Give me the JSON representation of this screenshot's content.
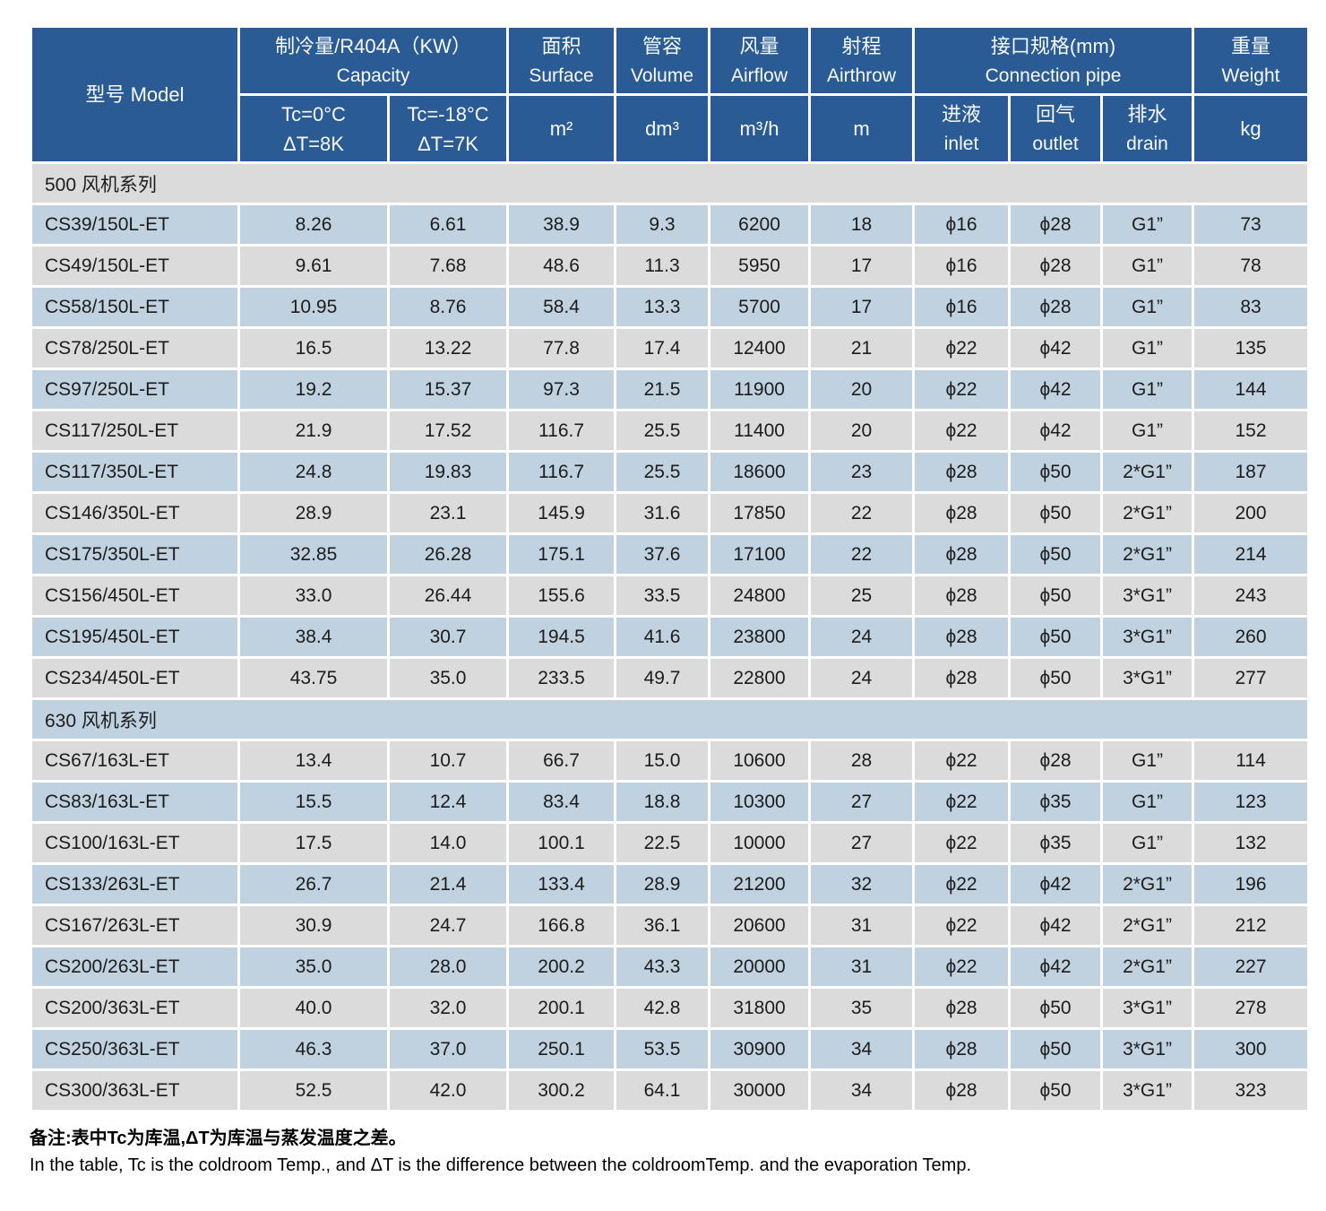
{
  "colors": {
    "header_bg": "#2a5b94",
    "header_text": "#f7fafc",
    "row_blue": "#c0d2e0",
    "row_gray": "#dbdbdb",
    "text_dark": "#1c1c1c"
  },
  "table": {
    "header": {
      "model": "型号 Model",
      "capacity_group_cn": "制冷量/R404A（KW）",
      "capacity_group_en": "Capacity",
      "tc0_line1": "Tc=0°C",
      "tc0_line2": "ΔT=8K",
      "tc18_line1": "Tc=-18°C",
      "tc18_line2": "ΔT=7K",
      "surface_cn": "面积",
      "surface_en": "Surface",
      "surface_unit": "m²",
      "volume_cn": "管容",
      "volume_en": "Volume",
      "volume_unit": "dm³",
      "airflow_cn": "风量",
      "airflow_en": "Airflow",
      "airflow_unit": "m³/h",
      "airthrow_cn": "射程",
      "airthrow_en": "Airthrow",
      "airthrow_unit": "m",
      "pipe_group_cn": "接口规格(mm)",
      "pipe_group_en": "Connection pipe",
      "inlet_cn": "进液",
      "inlet_en": "inlet",
      "outlet_cn": "回气",
      "outlet_en": "outlet",
      "drain_cn": "排水",
      "drain_en": "drain",
      "weight_cn": "重量",
      "weight_en": "Weight",
      "weight_unit": "kg"
    },
    "sections": [
      {
        "label": "500 风机系列",
        "rows": [
          [
            "CS39/150L-ET",
            "8.26",
            "6.61",
            "38.9",
            "9.3",
            "6200",
            "18",
            "ϕ16",
            "ϕ28",
            "G1”",
            "73"
          ],
          [
            "CS49/150L-ET",
            "9.61",
            "7.68",
            "48.6",
            "11.3",
            "5950",
            "17",
            "ϕ16",
            "ϕ28",
            "G1”",
            "78"
          ],
          [
            "CS58/150L-ET",
            "10.95",
            "8.76",
            "58.4",
            "13.3",
            "5700",
            "17",
            "ϕ16",
            "ϕ28",
            "G1”",
            "83"
          ],
          [
            "CS78/250L-ET",
            "16.5",
            "13.22",
            "77.8",
            "17.4",
            "12400",
            "21",
            "ϕ22",
            "ϕ42",
            "G1”",
            "135"
          ],
          [
            "CS97/250L-ET",
            "19.2",
            "15.37",
            "97.3",
            "21.5",
            "11900",
            "20",
            "ϕ22",
            "ϕ42",
            "G1”",
            "144"
          ],
          [
            "CS117/250L-ET",
            "21.9",
            "17.52",
            "116.7",
            "25.5",
            "11400",
            "20",
            "ϕ22",
            "ϕ42",
            "G1”",
            "152"
          ],
          [
            "CS117/350L-ET",
            "24.8",
            "19.83",
            "116.7",
            "25.5",
            "18600",
            "23",
            "ϕ28",
            "ϕ50",
            "2*G1”",
            "187"
          ],
          [
            "CS146/350L-ET",
            "28.9",
            "23.1",
            "145.9",
            "31.6",
            "17850",
            "22",
            "ϕ28",
            "ϕ50",
            "2*G1”",
            "200"
          ],
          [
            "CS175/350L-ET",
            "32.85",
            "26.28",
            "175.1",
            "37.6",
            "17100",
            "22",
            "ϕ28",
            "ϕ50",
            "2*G1”",
            "214"
          ],
          [
            "CS156/450L-ET",
            "33.0",
            "26.44",
            "155.6",
            "33.5",
            "24800",
            "25",
            "ϕ28",
            "ϕ50",
            "3*G1”",
            "243"
          ],
          [
            "CS195/450L-ET",
            "38.4",
            "30.7",
            "194.5",
            "41.6",
            "23800",
            "24",
            "ϕ28",
            "ϕ50",
            "3*G1”",
            "260"
          ],
          [
            "CS234/450L-ET",
            "43.75",
            "35.0",
            "233.5",
            "49.7",
            "22800",
            "24",
            "ϕ28",
            "ϕ50",
            "3*G1”",
            "277"
          ]
        ]
      },
      {
        "label": "630 风机系列",
        "rows": [
          [
            "CS67/163L-ET",
            "13.4",
            "10.7",
            "66.7",
            "15.0",
            "10600",
            "28",
            "ϕ22",
            "ϕ28",
            "G1”",
            "114"
          ],
          [
            "CS83/163L-ET",
            "15.5",
            "12.4",
            "83.4",
            "18.8",
            "10300",
            "27",
            "ϕ22",
            "ϕ35",
            "G1”",
            "123"
          ],
          [
            "CS100/163L-ET",
            "17.5",
            "14.0",
            "100.1",
            "22.5",
            "10000",
            "27",
            "ϕ22",
            "ϕ35",
            "G1”",
            "132"
          ],
          [
            "CS133/263L-ET",
            "26.7",
            "21.4",
            "133.4",
            "28.9",
            "21200",
            "32",
            "ϕ22",
            "ϕ42",
            "2*G1”",
            "196"
          ],
          [
            "CS167/263L-ET",
            "30.9",
            "24.7",
            "166.8",
            "36.1",
            "20600",
            "31",
            "ϕ22",
            "ϕ42",
            "2*G1”",
            "212"
          ],
          [
            "CS200/263L-ET",
            "35.0",
            "28.0",
            "200.2",
            "43.3",
            "20000",
            "31",
            "ϕ22",
            "ϕ42",
            "2*G1”",
            "227"
          ],
          [
            "CS200/363L-ET",
            "40.0",
            "32.0",
            "200.1",
            "42.8",
            "31800",
            "35",
            "ϕ28",
            "ϕ50",
            "3*G1”",
            "278"
          ],
          [
            "CS250/363L-ET",
            "46.3",
            "37.0",
            "250.1",
            "53.5",
            "30900",
            "34",
            "ϕ28",
            "ϕ50",
            "3*G1”",
            "300"
          ],
          [
            "CS300/363L-ET",
            "52.5",
            "42.0",
            "300.2",
            "64.1",
            "30000",
            "34",
            "ϕ28",
            "ϕ50",
            "3*G1”",
            "323"
          ]
        ]
      }
    ]
  },
  "notes": {
    "cn": "备注:表中Tc为库温,ΔT为库温与蒸发温度之差。",
    "en": "In the table, Tc is the coldroom Temp., and ΔT is the difference between the coldroomTemp. and the evaporation Temp."
  }
}
